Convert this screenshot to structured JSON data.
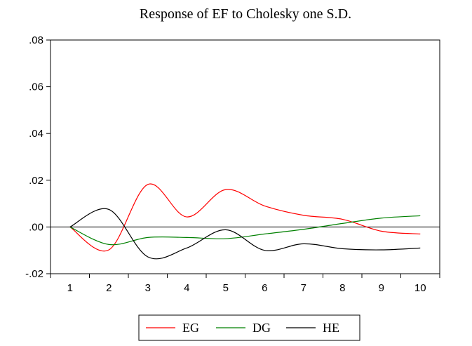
{
  "chart_data": {
    "type": "line",
    "title": "Response of EF to Cholesky one S.D.",
    "xlabel": "",
    "ylabel": "",
    "x": [
      1,
      2,
      3,
      4,
      5,
      6,
      7,
      8,
      9,
      10
    ],
    "x_tick_labels": [
      "1",
      "2",
      "3",
      "4",
      "5",
      "6",
      "7",
      "8",
      "9",
      "10"
    ],
    "ylim": [
      -0.02,
      0.08
    ],
    "y_ticks": [
      -0.02,
      0.0,
      0.02,
      0.04,
      0.06,
      0.08
    ],
    "y_tick_labels": [
      "-.02",
      ".00",
      ".02",
      ".04",
      ".06",
      ".08"
    ],
    "zero_line": true,
    "grid": false,
    "legend_position": "bottom-center",
    "series": [
      {
        "name": "EG",
        "color": "#ff0000",
        "values": [
          0.0,
          -0.0098,
          0.0182,
          0.0043,
          0.016,
          0.009,
          0.005,
          0.0033,
          -0.0018,
          -0.003
        ]
      },
      {
        "name": "DG",
        "color": "#008000",
        "values": [
          0.0,
          -0.0075,
          -0.0045,
          -0.0045,
          -0.005,
          -0.003,
          -0.001,
          0.0015,
          0.0038,
          0.0048
        ]
      },
      {
        "name": "HE",
        "color": "#000000",
        "values": [
          0.0,
          0.0075,
          -0.0128,
          -0.009,
          -0.0012,
          -0.01,
          -0.0072,
          -0.0093,
          -0.0098,
          -0.009
        ]
      }
    ]
  }
}
